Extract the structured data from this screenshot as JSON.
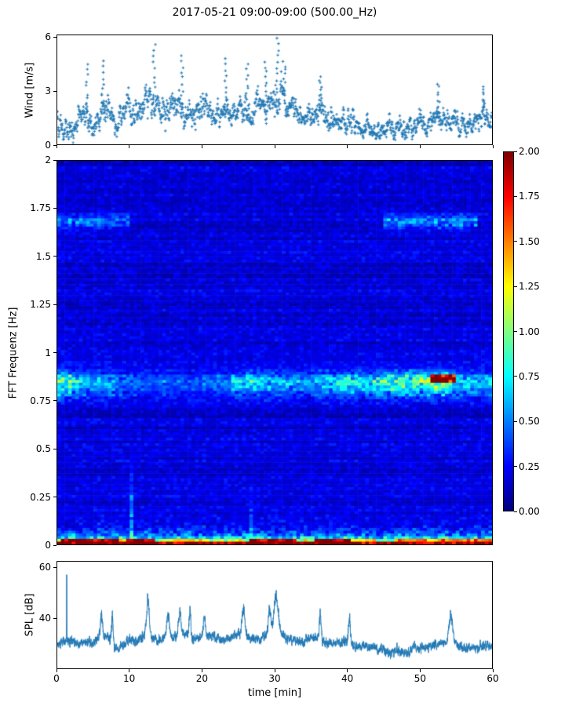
{
  "title": "2017-05-21 09:00-09:00 (500.00_Hz)",
  "colors": {
    "series_blue": "#1f77b4",
    "series_blue_light": "rgba(31,119,180,0.30)",
    "axis_color": "#000000",
    "background": "#ffffff",
    "jet_stops": [
      "#000080",
      "#0000ff",
      "#00ffff",
      "#80ff80",
      "#ffff00",
      "#ff0000",
      "#800000"
    ]
  },
  "chart_data": [
    {
      "id": "wind",
      "type": "scatter",
      "marker": "+",
      "ylabel": "Wind [m/s]",
      "ylim": [
        0,
        6.15
      ],
      "xlim": [
        0,
        60
      ],
      "yticks": [
        {
          "v": 0,
          "label": "0"
        },
        {
          "v": 3,
          "label": "3"
        },
        {
          "v": 6,
          "label": "6"
        }
      ],
      "xticks_unlabeled": [
        0,
        10,
        20,
        30,
        40,
        50,
        60
      ],
      "points_per_minute": 25,
      "minute_mean": [
        1.4,
        0.9,
        0.6,
        1.3,
        1.6,
        0.8,
        1.7,
        2.1,
        1.0,
        1.6,
        2.0,
        1.8,
        2.0,
        2.6,
        2.2,
        2.0,
        2.2,
        2.1,
        1.8,
        1.5,
        2.2,
        1.8,
        1.5,
        2.0,
        1.6,
        1.8,
        2.0,
        1.7,
        2.2,
        2.1,
        3.0,
        2.6,
        2.2,
        1.9,
        1.7,
        1.8,
        2.0,
        1.7,
        1.6,
        1.5,
        1.5,
        1.2,
        1.0,
        0.9,
        0.8,
        0.8,
        0.9,
        1.0,
        0.8,
        1.1,
        1.2,
        1.0,
        1.4,
        1.4,
        1.6,
        1.0,
        1.1,
        1.0,
        1.3,
        1.6,
        1.5
      ],
      "minute_max": [
        2.9,
        2.2,
        1.5,
        2.6,
        3.1,
        2.0,
        4.7,
        3.5,
        2.0,
        3.2,
        3.7,
        3.0,
        3.5,
        5.6,
        4.4,
        3.3,
        4.4,
        5.1,
        3.4,
        2.8,
        3.9,
        3.3,
        3.0,
        4.9,
        3.2,
        3.6,
        4.5,
        3.0,
        4.6,
        4.0,
        6.0,
        4.6,
        4.0,
        3.3,
        3.0,
        3.0,
        3.9,
        3.3,
        3.0,
        2.8,
        3.0,
        2.2,
        2.0,
        1.8,
        1.6,
        1.6,
        2.2,
        2.0,
        1.6,
        2.2,
        2.6,
        2.0,
        3.4,
        3.0,
        3.3,
        2.0,
        2.9,
        2.0,
        3.2,
        3.3,
        3.0
      ],
      "peaks": [
        [
          4.1,
          4.6
        ],
        [
          6.3,
          4.7
        ],
        [
          13.4,
          5.6
        ],
        [
          17.2,
          5.1
        ],
        [
          23.3,
          4.9
        ],
        [
          26.2,
          4.5
        ],
        [
          28.8,
          4.6
        ],
        [
          30.4,
          6.0
        ],
        [
          31.3,
          4.6
        ],
        [
          36.3,
          3.9
        ],
        [
          52.6,
          3.4
        ],
        [
          58.9,
          3.3
        ]
      ]
    },
    {
      "id": "spectrogram",
      "type": "heatmap",
      "ylabel": "FFT Frequenz [Hz]",
      "ylim": [
        0,
        2
      ],
      "xlim": [
        0,
        60
      ],
      "colormap": "jet",
      "clim": [
        0,
        2
      ],
      "yticks": [
        {
          "v": 2,
          "label": "2"
        },
        {
          "v": 1.75,
          "label": "1.75"
        },
        {
          "v": 1.5,
          "label": "1.5"
        },
        {
          "v": 1.25,
          "label": "1.25"
        },
        {
          "v": 1,
          "label": "1"
        },
        {
          "v": 0.75,
          "label": "0.75"
        },
        {
          "v": 0.5,
          "label": "0.5"
        },
        {
          "v": 0.25,
          "label": "0.25"
        },
        {
          "v": 0,
          "label": "0"
        }
      ],
      "colorbar_ticks": [
        {
          "v": 0,
          "label": "0.00"
        },
        {
          "v": 0.25,
          "label": "0.25"
        },
        {
          "v": 0.5,
          "label": "0.50"
        },
        {
          "v": 0.75,
          "label": "0.75"
        },
        {
          "v": 1,
          "label": "1.00"
        },
        {
          "v": 1.25,
          "label": "1.25"
        },
        {
          "v": 1.5,
          "label": "1.50"
        },
        {
          "v": 1.75,
          "label": "1.75"
        },
        {
          "v": 2,
          "label": "2.00"
        }
      ],
      "background_level_range": [
        0.07,
        0.33
      ],
      "band_085": {
        "center_hz": 0.85,
        "width_hz": 0.035,
        "secondary_center_hz": 0.78,
        "amplitude_by_2min": [
          0.85,
          0.6,
          0.5,
          0.45,
          0.35,
          0.3,
          0.25,
          0.3,
          0.25,
          0.25,
          0.3,
          0.35,
          0.5,
          0.6,
          0.5,
          0.45,
          0.4,
          0.45,
          0.55,
          0.6,
          0.65,
          0.6,
          0.75,
          0.8,
          0.85,
          0.8,
          0.9,
          0.6,
          0.5,
          0.45
        ],
        "hot_segment": {
          "t_range": [
            51.5,
            55.0
          ],
          "center_hz": 0.87,
          "amplitude": 1.35
        }
      },
      "band_17": {
        "center_hz": 1.68,
        "width_hz": 0.025,
        "segments": [
          [
            0,
            10,
            0.35
          ],
          [
            45,
            58,
            0.4
          ]
        ]
      },
      "low_freq": {
        "scale": 2.3,
        "decay_hz": 0.018,
        "speckle_scale": 0.6,
        "speckle_decay_hz": 0.06,
        "speckle_below_hz": 0.2
      },
      "bottom_patches": [
        [
          0.5,
          8.5,
          2.0
        ],
        [
          9.3,
          13.5,
          2.0
        ],
        [
          14.5,
          20,
          1.2
        ],
        [
          20,
          26,
          1.0
        ],
        [
          26.5,
          33,
          2.0
        ],
        [
          33,
          35,
          1.0
        ],
        [
          35.5,
          40.5,
          2.0
        ],
        [
          41,
          44,
          1.2
        ],
        [
          44,
          46.5,
          0.8
        ],
        [
          47,
          60,
          1.5
        ]
      ],
      "vertical_streaks": [
        [
          10.0,
          10.6,
          0.5,
          0.45
        ],
        [
          1.8,
          2.2,
          0.3,
          0.3
        ],
        [
          26.6,
          27.0,
          0.35,
          0.3
        ]
      ]
    },
    {
      "id": "spl",
      "type": "line",
      "ylabel": "SPL [dB]",
      "xlabel": "time [min]",
      "ylim": [
        20,
        62.5
      ],
      "xlim": [
        0,
        60
      ],
      "yticks": [
        {
          "v": 40,
          "label": "40"
        },
        {
          "v": 60,
          "label": "60"
        }
      ],
      "xticks": [
        {
          "v": 0,
          "label": "0"
        },
        {
          "v": 10,
          "label": "10"
        },
        {
          "v": 20,
          "label": "20"
        },
        {
          "v": 30,
          "label": "30"
        },
        {
          "v": 40,
          "label": "40"
        },
        {
          "v": 50,
          "label": "50"
        },
        {
          "v": 60,
          "label": "60"
        }
      ],
      "samples_per_minute": 60,
      "minute_base": [
        29,
        31,
        31,
        30,
        31,
        30,
        33,
        32,
        28,
        29,
        31,
        31,
        33,
        32,
        31,
        33,
        32,
        34,
        33,
        32,
        33,
        33,
        32,
        31,
        32,
        34,
        33,
        31,
        32,
        34,
        35,
        33,
        32,
        31,
        31,
        32,
        32,
        30,
        30,
        30,
        31,
        29,
        29,
        29,
        28,
        27,
        26,
        27,
        26,
        28,
        28,
        28,
        29,
        30,
        31,
        30,
        28,
        28,
        28,
        29,
        29
      ],
      "peaks": [
        [
          1.3,
          61,
          0.02
        ],
        [
          6.1,
          41,
          0.15
        ],
        [
          7.6,
          40,
          0.12
        ],
        [
          12.5,
          46,
          0.2
        ],
        [
          15.3,
          42,
          0.15
        ],
        [
          16.9,
          43,
          0.15
        ],
        [
          18.3,
          42,
          0.12
        ],
        [
          20.3,
          41,
          0.12
        ],
        [
          25.7,
          44,
          0.2
        ],
        [
          29.3,
          44,
          0.15
        ],
        [
          30.2,
          48,
          0.3
        ],
        [
          36.3,
          41,
          0.12
        ],
        [
          40.3,
          40,
          0.12
        ],
        [
          54.3,
          41,
          0.25
        ]
      ]
    }
  ]
}
